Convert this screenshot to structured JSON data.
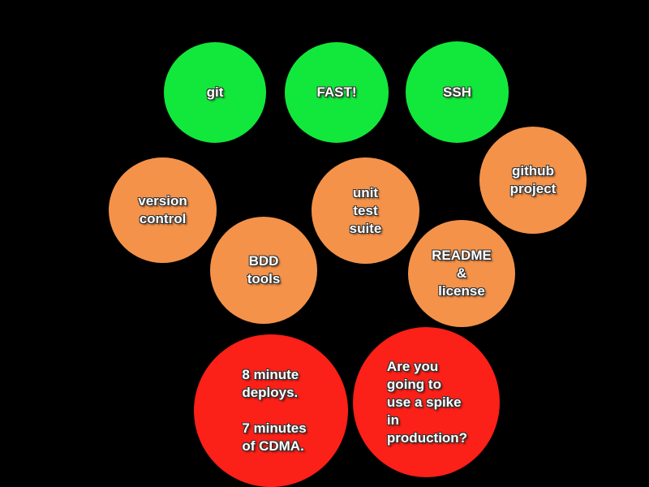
{
  "colors": {
    "background": "#000000",
    "green": "#12e83b",
    "orange": "#f4924a",
    "red": "#fb2018",
    "text": "#ffffff"
  },
  "bubbles": {
    "git": {
      "text": "git",
      "color": "green"
    },
    "fast": {
      "text": "FAST!",
      "color": "green"
    },
    "ssh": {
      "text": "SSH",
      "color": "green"
    },
    "version_control": {
      "text": "version\ncontrol",
      "color": "orange"
    },
    "unit_test_suite": {
      "text": "unit\ntest\nsuite",
      "color": "orange"
    },
    "github_project": {
      "text": "github\nproject",
      "color": "orange"
    },
    "bdd_tools": {
      "text": "BDD\ntools",
      "color": "orange"
    },
    "readme_license": {
      "text": "README\n&\nlicense",
      "color": "orange"
    },
    "deploys": {
      "text": "8 minute\ndeploys.\n\n7 minutes\nof CDMA.",
      "color": "red"
    },
    "spike": {
      "text": "Are you\ngoing to\nuse a spike\nin\nproduction?",
      "color": "red"
    }
  }
}
